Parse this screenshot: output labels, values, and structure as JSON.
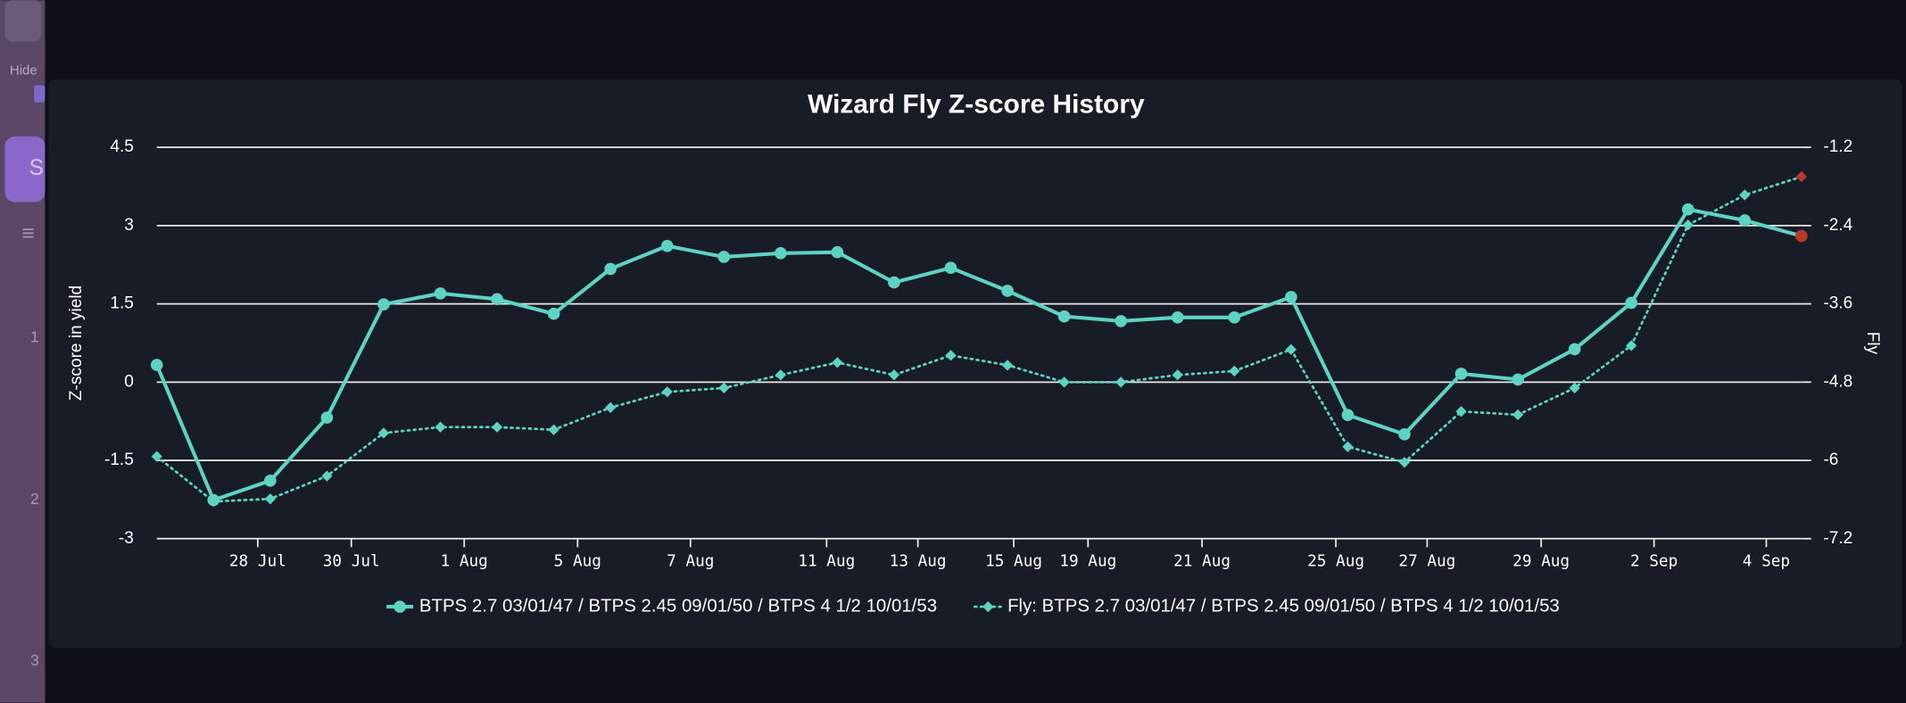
{
  "sidebar": {
    "labels": [
      "Hide",
      "S",
      "1",
      "2",
      "3"
    ]
  },
  "chart_data": {
    "type": "line",
    "title": "Wizard Fly Z-score History",
    "y_label": "Z-score in yield",
    "y2_label": "Fly",
    "categories": [
      null,
      null,
      null,
      null,
      null,
      null,
      null,
      null,
      null,
      null,
      null,
      null,
      null,
      null,
      null,
      null,
      null,
      null,
      null,
      null,
      null,
      null,
      null,
      null,
      null,
      null,
      null,
      null,
      null,
      null
    ],
    "xticks": [
      {
        "value": 1.78,
        "label": "28 Jul"
      },
      {
        "value": 3.43,
        "label": "30 Jul"
      },
      {
        "value": 5.42,
        "label": "1 Aug"
      },
      {
        "value": 7.42,
        "label": "5 Aug"
      },
      {
        "value": 9.41,
        "label": "7 Aug"
      },
      {
        "value": 11.81,
        "label": "11 Aug"
      },
      {
        "value": 13.42,
        "label": "13 Aug"
      },
      {
        "value": 15.11,
        "label": "15 Aug"
      },
      {
        "value": 16.42,
        "label": "19 Aug"
      },
      {
        "value": 18.43,
        "label": "21 Aug"
      },
      {
        "value": 20.79,
        "label": "25 Aug"
      },
      {
        "value": 22.4,
        "label": "27 Aug"
      },
      {
        "value": 24.41,
        "label": "29 Aug"
      },
      {
        "value": 26.4,
        "label": "2 Sep"
      },
      {
        "value": 28.38,
        "label": "4 Sep"
      }
    ],
    "ylim": [
      -3,
      4.5
    ],
    "yticks": [
      -3,
      -1.5,
      0,
      1.5,
      3,
      4.5
    ],
    "y2lim": [
      -7.2,
      -1.2
    ],
    "y2ticks": [
      -7.2,
      -6,
      -4.8,
      -3.6,
      -2.4,
      -1.2
    ],
    "grid": true,
    "legend": "bottom",
    "highlight_color": "#b83a2e",
    "series": [
      {
        "name": "BTPS 2.7 03/01/47 / BTPS 2.45 09/01/50 / BTPS 4 1/2 10/01/53",
        "color": "#5fd3c3",
        "style": "solid",
        "marker": "circle",
        "values": [
          0.33,
          -2.26,
          -1.89,
          -0.68,
          1.49,
          1.7,
          1.59,
          1.31,
          2.17,
          2.61,
          2.4,
          2.47,
          2.49,
          1.91,
          2.19,
          1.75,
          1.26,
          1.17,
          1.24,
          1.24,
          1.63,
          -0.63,
          -1.0,
          0.16,
          0.05,
          0.63,
          1.52,
          3.31,
          3.1,
          2.8
        ]
      },
      {
        "name": "Fly: BTPS 2.7 03/01/47 / BTPS 2.45 09/01/50 / BTPS 4 1/2 10/01/53",
        "color": "#5fd3c3",
        "style": "dotted",
        "marker": "diamond",
        "axis": "y2",
        "values": [
          -5.94,
          -6.63,
          -6.59,
          -6.24,
          -5.58,
          -5.49,
          -5.49,
          -5.53,
          -5.19,
          -4.95,
          -4.89,
          -4.69,
          -4.5,
          -4.69,
          -4.39,
          -4.54,
          -4.8,
          -4.8,
          -4.69,
          -4.63,
          -4.3,
          -5.79,
          -6.03,
          -5.25,
          -5.3,
          -4.89,
          -4.24,
          -2.39,
          -1.93,
          -1.65
        ]
      }
    ]
  }
}
